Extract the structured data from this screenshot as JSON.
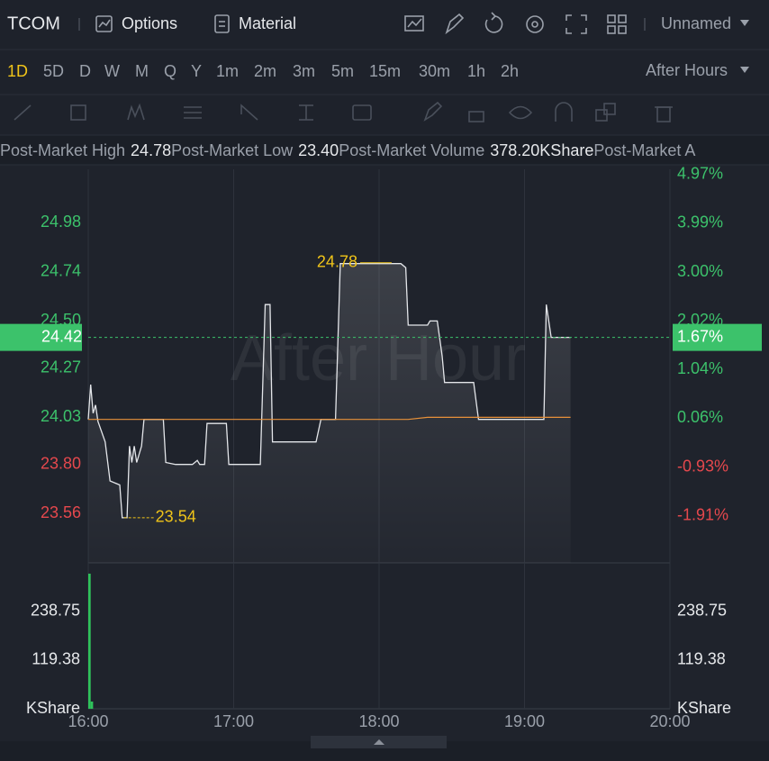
{
  "toolbar": {
    "symbol": "TCOM",
    "options": "Options",
    "material": "Material",
    "layout": "Unnamed"
  },
  "periods": {
    "items": [
      "1D",
      "5D",
      "D",
      "W",
      "M",
      "Q",
      "Y",
      "1m",
      "2m",
      "3m",
      "5m",
      "15m",
      "30m",
      "1h",
      "2h"
    ],
    "active": "1D",
    "session": "After Hours"
  },
  "stats": [
    {
      "label": "Post-Market High",
      "value": "24.78"
    },
    {
      "label": "Post-Market Low",
      "value": "23.40"
    },
    {
      "label": "Post-Market Volume",
      "value": "378.20KShare"
    },
    {
      "label": "Post-Market A"
    }
  ],
  "chart_data": [
    {
      "type": "line",
      "watermark": "After Hour",
      "x": [
        "16:00",
        "16:01",
        "16:02",
        "16:03",
        "16:04",
        "16:07",
        "16:09",
        "16:13",
        "16:14",
        "16:16",
        "16:17",
        "16:18",
        "16:19",
        "16:20",
        "16:22",
        "16:23",
        "16:31",
        "16:32",
        "16:36",
        "16:43",
        "16:45",
        "16:46",
        "16:48",
        "16:49",
        "16:57",
        "16:58",
        "17:11",
        "17:13",
        "17:15",
        "17:16",
        "17:34",
        "17:36",
        "17:42",
        "17:44",
        "18:09",
        "18:11",
        "18:12",
        "18:20",
        "18:21",
        "18:24",
        "18:26",
        "18:27",
        "18:39",
        "18:41",
        "19:08",
        "19:09",
        "19:11",
        "19:19"
      ],
      "xlim": [
        "16:00",
        "20:00"
      ],
      "series": [
        {
          "color": "#e4e6ea",
          "values": [
            24.02,
            24.19,
            24.05,
            24.09,
            24.01,
            23.91,
            23.72,
            23.7,
            23.54,
            23.54,
            23.89,
            23.81,
            23.89,
            23.81,
            23.89,
            24.02,
            24.02,
            23.81,
            23.8,
            23.8,
            23.82,
            23.8,
            23.8,
            24.0,
            24.0,
            23.8,
            23.8,
            24.58,
            24.58,
            23.91,
            23.91,
            24.02,
            24.02,
            24.78,
            24.78,
            24.76,
            24.48,
            24.48,
            24.5,
            24.5,
            24.33,
            24.2,
            24.2,
            24.02,
            24.02,
            24.58,
            24.42,
            24.42
          ]
        },
        {
          "color": "#e8913a",
          "values": [
            24.02,
            24.02,
            24.02,
            24.02,
            24.02,
            24.02,
            24.02,
            24.02,
            24.02,
            24.02,
            24.02,
            24.02,
            24.02,
            24.02,
            24.02,
            24.02,
            24.02,
            24.02,
            24.02,
            24.02,
            24.02,
            24.02,
            24.02,
            24.02,
            24.02,
            24.02,
            24.02,
            24.02,
            24.02,
            24.02,
            24.02,
            24.02,
            24.02,
            24.02,
            24.02,
            24.02,
            24.02,
            24.03,
            24.03,
            24.03,
            24.03,
            24.03,
            24.03,
            24.03,
            24.03,
            24.03,
            24.03,
            24.03
          ]
        }
      ],
      "ylim": [
        23.32,
        25.24
      ],
      "yticks": [
        24.98,
        24.74,
        {
          "value": 24.5,
          "label": "24.50"
        },
        24.27,
        24.03,
        {
          "value": 23.8,
          "label": "23.80"
        },
        23.56
      ],
      "y2lim": [
        -2.86,
        5.07
      ],
      "y2ticks": [
        {
          "value": 4.97,
          "label": "4.97%"
        },
        {
          "value": 3.99,
          "label": "3.99%"
        },
        {
          "value": 3,
          "label": "3.00%"
        },
        {
          "value": 2.02,
          "label": "2.02%"
        },
        {
          "value": 1.04,
          "label": "1.04%"
        },
        {
          "value": 0.06,
          "label": "0.06%"
        },
        {
          "value": -0.93,
          "label": "-0.93%"
        },
        {
          "value": -1.91,
          "label": "-1.91%"
        }
      ],
      "annotations": [
        {
          "x": "17:44",
          "value": 24.78
        },
        {
          "x": "16:14",
          "value": 23.54
        }
      ],
      "last": {
        "value": 24.42,
        "pct": {
          "value": 1.67,
          "label": "1.67%"
        }
      },
      "up_color": "#3cc26b",
      "down_color": "#e5484d",
      "grid": true
    },
    {
      "type": "bar",
      "x": [
        "16:00",
        "16:01"
      ],
      "values": [
        331.6,
        17.7
      ],
      "color": "#2fc25b",
      "ylim": [
        0,
        342.6
      ],
      "yticks": [
        119.38,
        238.75
      ],
      "unit": "KShare",
      "xlim": [
        "16:00",
        "20:00"
      ],
      "xticks": [
        "16:00",
        "17:00",
        "18:00",
        "19:00",
        "20:00"
      ],
      "grid": true
    }
  ]
}
